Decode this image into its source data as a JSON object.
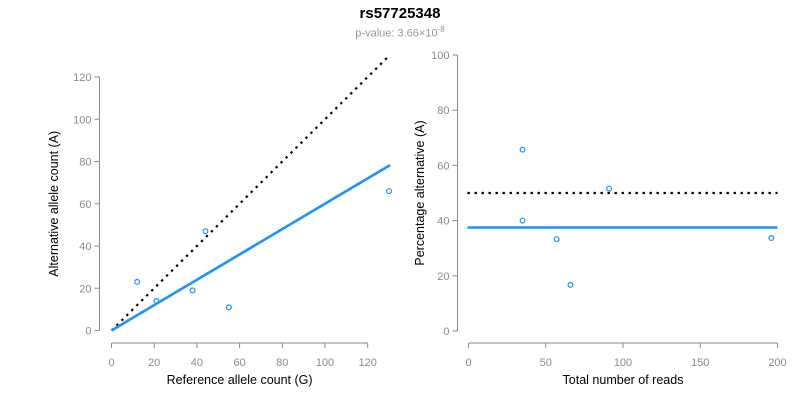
{
  "header": {
    "title": "rs57725348",
    "subtitle_base": "p-value: 3.66×10",
    "subtitle_exponent": "-8"
  },
  "colors": {
    "accent_blue": "#1E90FF",
    "dotted_black": "#000000",
    "axis_gray": "#8A8A8A",
    "axis_title_black": "#000000",
    "subtitle_gray": "#969696"
  },
  "chart_data": [
    {
      "id": "allele-count-scatter",
      "type": "scatter",
      "xlabel": "Reference allele count (G)",
      "ylabel": "Alternative allele count (A)",
      "xticks": [
        0,
        20,
        40,
        60,
        80,
        100,
        120
      ],
      "yticks": [
        0,
        20,
        40,
        60,
        80,
        100,
        120
      ],
      "xlim": [
        0,
        130
      ],
      "ylim": [
        0,
        130
      ],
      "grid": false,
      "points": [
        [
          12,
          23
        ],
        [
          21,
          14
        ],
        [
          38,
          19
        ],
        [
          44,
          47
        ],
        [
          55,
          11
        ],
        [
          130,
          66
        ]
      ],
      "lines": [
        {
          "name": "identity-line",
          "style": "dotted",
          "color": "#000000",
          "from": [
            0,
            0
          ],
          "to": [
            129.5,
            129.5
          ]
        },
        {
          "name": "fit-line",
          "style": "solid",
          "color": "#1E90FF",
          "from": [
            0,
            0
          ],
          "to": [
            130.5,
            78.3
          ]
        }
      ]
    },
    {
      "id": "percentage-alternative-scatter",
      "type": "scatter",
      "xlabel": "Total number of reads",
      "ylabel": "Percentage alternative (A)",
      "xticks": [
        0,
        50,
        100,
        150,
        200
      ],
      "yticks": [
        0,
        20,
        40,
        60,
        80,
        100
      ],
      "xlim": [
        0,
        200
      ],
      "ylim": [
        0,
        100
      ],
      "grid": false,
      "points": [
        [
          35,
          65.7
        ],
        [
          35,
          40
        ],
        [
          57,
          33.3
        ],
        [
          66,
          16.7
        ],
        [
          91,
          51.6
        ],
        [
          196,
          33.7
        ]
      ],
      "lines": [
        {
          "name": "expected-50pct-line",
          "style": "dotted",
          "color": "#000000",
          "h": 50
        },
        {
          "name": "mean-percentage-line",
          "style": "solid",
          "color": "#1E90FF",
          "h": 37.5
        }
      ]
    }
  ]
}
